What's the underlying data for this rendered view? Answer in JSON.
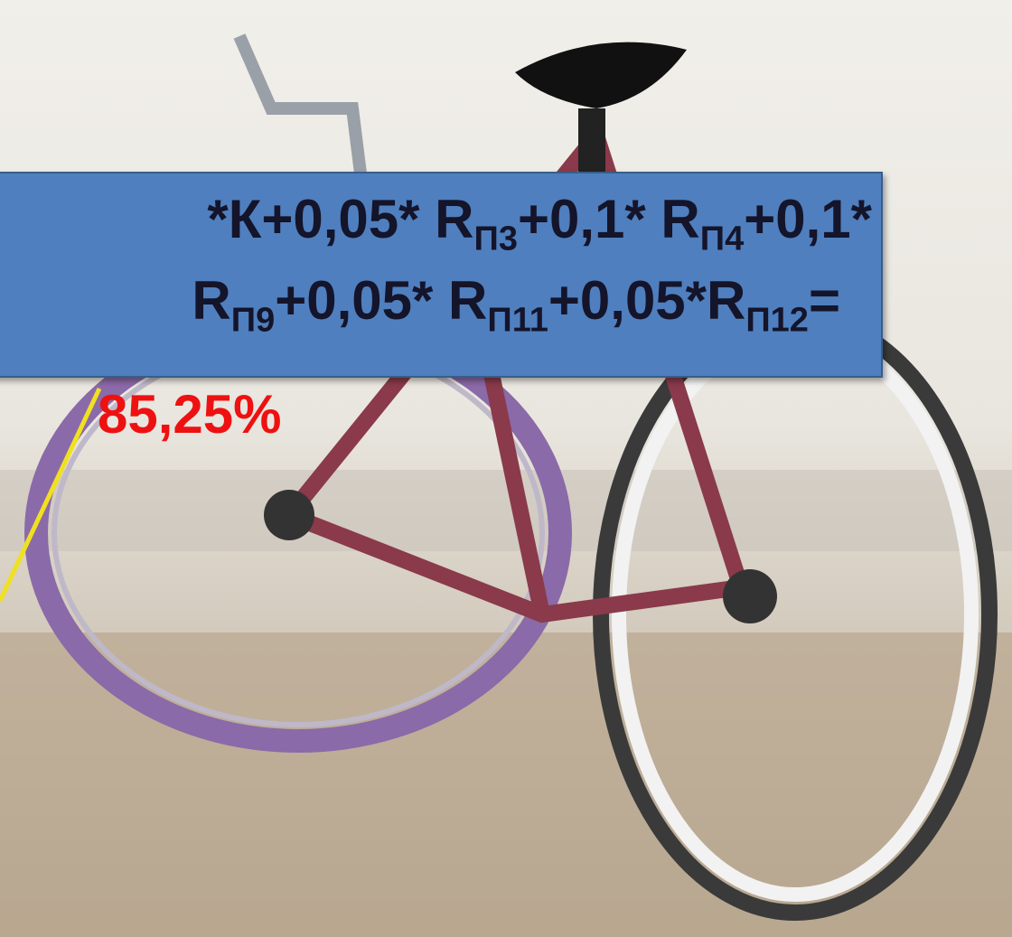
{
  "formula": {
    "lines": [
      [
        {
          "text": "*К+0,05* R",
          "sub": "П3"
        },
        {
          "text": "+0,1* R",
          "sub": "П4"
        },
        {
          "text": "+0,1*"
        }
      ],
      [
        {
          "text": "R",
          "sub": "П9"
        },
        {
          "text": "+0,05* R",
          "sub": "П11"
        },
        {
          "text": "+0,05*R",
          "sub": "П12"
        },
        {
          "text": "="
        }
      ]
    ]
  },
  "result": "85,25%"
}
